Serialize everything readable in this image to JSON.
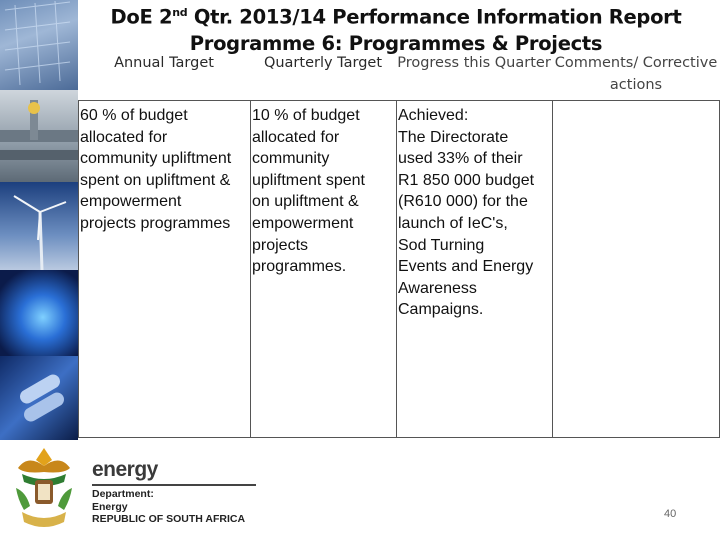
{
  "header": {
    "title_prefix": "DoE 2",
    "title_sup": "nd",
    "title_suffix": " Qtr. 2013/14 Performance Information Report",
    "subtitle": "Programme 6: Programmes & Projects"
  },
  "table": {
    "columns": [
      "Annual Target",
      "Quarterly Target",
      "Progress this Quarter",
      "Comments/ Corrective actions"
    ],
    "row": {
      "annual_target": "60 % of budget\nallocated for\ncommunity upliftment\nspent on upliftment &\nempowerment\nprojects programmes",
      "quarterly_target": "10 % of budget\nallocated for\ncommunity\nupliftment spent\non upliftment &\nempowerment\nprojects\nprogrammes.",
      "progress_label": "Achieved",
      "progress_text": ":\nThe Directorate\nused 33% of their\nR1 850 000 budget\n(R610 000) for the\nlaunch of IeC's,\nSod Turning\nEvents and Energy\nAwareness\nCampaigns.",
      "comments": ""
    }
  },
  "footer": {
    "brand": "energy",
    "dept_line1": "Department:",
    "dept_line2": "Energy",
    "dept_line3": "REPUBLIC OF SOUTH AFRICA",
    "page_number": "40"
  }
}
